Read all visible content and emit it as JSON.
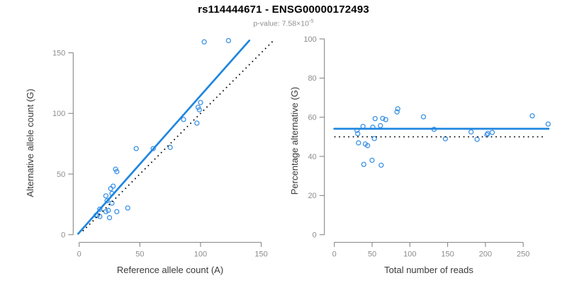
{
  "header": {
    "title": "rs114444671 - ENSG00000172493",
    "pvalue_text": "p-value: 7.58×10",
    "pvalue_exponent": "-5"
  },
  "colors": {
    "line_blue": "#1f86e0",
    "point_blue": "#3d93e6",
    "axis_gray": "#878787",
    "tick_label_gray": "#8c8c8c",
    "axis_title_dark": "#3a3a3a",
    "dotted_black": "#0a0a0a"
  },
  "chart_data": [
    {
      "type": "scatter",
      "panel": "left",
      "title": "rs114444671 - ENSG00000172493",
      "subtitle": "p-value: 7.58×10^-5",
      "xlabel": "Reference allele count (A)",
      "ylabel": "Alternative allele count (G)",
      "xlim": [
        0,
        160
      ],
      "ylim": [
        0,
        165
      ],
      "xticks": [
        0,
        50,
        100,
        150
      ],
      "yticks": [
        0,
        50,
        100,
        150
      ],
      "grid": false,
      "legend": "none",
      "points": [
        [
          14,
          16
        ],
        [
          15,
          16
        ],
        [
          17,
          15
        ],
        [
          17,
          21
        ],
        [
          25,
          14
        ],
        [
          22,
          19
        ],
        [
          24,
          20
        ],
        [
          23,
          28
        ],
        [
          22,
          32
        ],
        [
          27,
          26
        ],
        [
          27,
          34
        ],
        [
          26,
          38
        ],
        [
          28,
          40
        ],
        [
          31,
          19
        ],
        [
          30,
          54
        ],
        [
          31,
          52
        ],
        [
          40,
          22
        ],
        [
          47,
          71
        ],
        [
          61,
          71
        ],
        [
          75,
          72
        ],
        [
          86,
          95
        ],
        [
          97,
          92
        ],
        [
          98,
          105
        ],
        [
          99,
          103
        ],
        [
          100,
          109
        ],
        [
          103,
          159
        ],
        [
          123,
          160
        ]
      ],
      "regression_line": {
        "slope": 1.13,
        "intercept": 1.7,
        "style": "solid",
        "color": "#1f86e0"
      },
      "identity_line": {
        "slope": 1,
        "intercept": 0,
        "style": "dotted",
        "color": "#0a0a0a"
      },
      "point_color": "#3d93e6"
    },
    {
      "type": "scatter",
      "panel": "right",
      "xlabel": "Total number of reads",
      "ylabel": "Percentage alternative (G)",
      "xlim": [
        0,
        285
      ],
      "ylim": [
        0,
        100
      ],
      "xticks": [
        0,
        50,
        100,
        150,
        200,
        250
      ],
      "yticks": [
        0,
        20,
        40,
        60,
        80,
        100
      ],
      "grid": false,
      "legend": "none",
      "points": [
        [
          30,
          53.3
        ],
        [
          31,
          51.6
        ],
        [
          32,
          46.9
        ],
        [
          38,
          55.3
        ],
        [
          39,
          35.9
        ],
        [
          41,
          46.3
        ],
        [
          44,
          45.5
        ],
        [
          51,
          54.9
        ],
        [
          54,
          59.3
        ],
        [
          53,
          49.1
        ],
        [
          61,
          55.7
        ],
        [
          64,
          59.4
        ],
        [
          68,
          58.8
        ],
        [
          50,
          38.0
        ],
        [
          84,
          64.3
        ],
        [
          83,
          62.7
        ],
        [
          62,
          35.5
        ],
        [
          118,
          60.2
        ],
        [
          132,
          53.8
        ],
        [
          147,
          49.0
        ],
        [
          181,
          52.5
        ],
        [
          189,
          48.7
        ],
        [
          203,
          51.7
        ],
        [
          202,
          51.0
        ],
        [
          209,
          52.2
        ],
        [
          262,
          60.7
        ],
        [
          283,
          56.5
        ]
      ],
      "mean_line": {
        "y": 54.1,
        "style": "solid",
        "color": "#1f86e0"
      },
      "null_line": {
        "y": 50,
        "style": "dotted",
        "color": "#0a0a0a"
      },
      "point_color": "#3d93e6"
    }
  ]
}
